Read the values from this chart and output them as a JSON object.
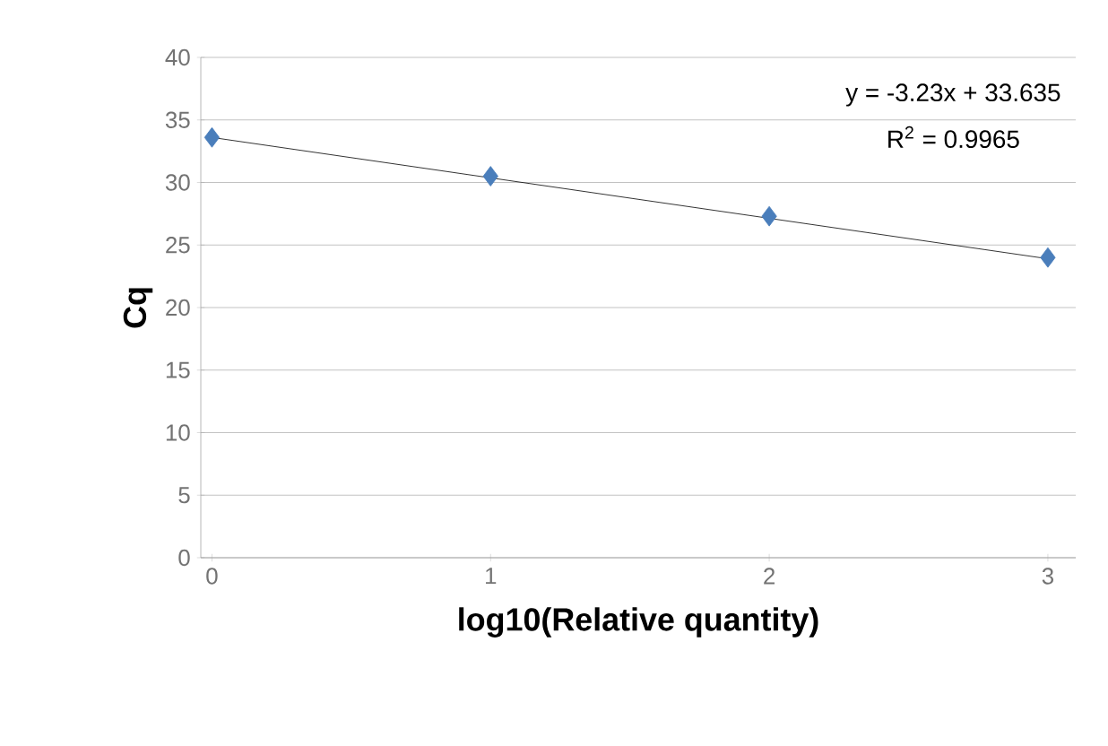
{
  "chart_data": {
    "type": "scatter",
    "xlabel": "log10(Relative quantity)",
    "ylabel": "Cq",
    "series": [
      {
        "color": "#4a7ebb",
        "marker": "diamond",
        "x": [
          0,
          1,
          2,
          3
        ],
        "values": [
          33.6,
          30.5,
          27.3,
          24.0
        ]
      },
      {
        "type": "line",
        "color": "#000000",
        "marker": "none",
        "x": [
          0,
          3
        ],
        "values": [
          33.6,
          23.9
        ]
      }
    ],
    "annotations": [
      "y = -3.23x + 33.635",
      "R$^{2}$ = 0.9965"
    ],
    "xlim": [
      -0.04,
      3.1
    ],
    "ylim": [
      0,
      40
    ],
    "xticks": [
      0,
      1,
      2,
      3
    ],
    "yticks": [
      0,
      5,
      10,
      15,
      20,
      25,
      30,
      35,
      40
    ],
    "grid": "y"
  }
}
